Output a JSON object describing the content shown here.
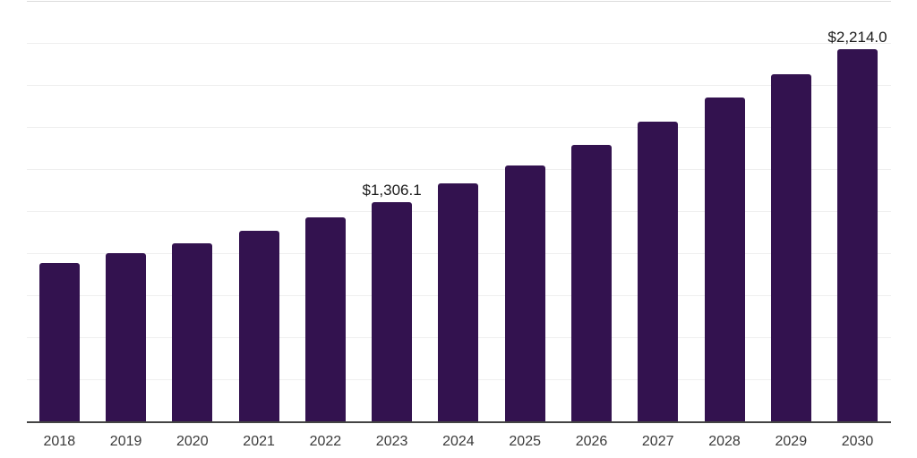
{
  "chart_data": {
    "type": "bar",
    "title": "",
    "xlabel": "",
    "ylabel": "",
    "categories": [
      "2018",
      "2019",
      "2020",
      "2021",
      "2022",
      "2023",
      "2024",
      "2025",
      "2026",
      "2027",
      "2028",
      "2029",
      "2030"
    ],
    "values": [
      941.4,
      1000.0,
      1060.0,
      1131.0,
      1213.0,
      1306.1,
      1415.0,
      1524.0,
      1645.0,
      1783.0,
      1926.0,
      2066.0,
      2214.0
    ],
    "labeled_points": [
      {
        "category": "2023",
        "text": "$1,306.1"
      },
      {
        "category": "2030",
        "text": "$2,214.0"
      }
    ],
    "ylim": [
      0,
      2500
    ],
    "gridline_step": 250,
    "grid": true,
    "legend": "none",
    "y_axis_labels_visible": false,
    "colors": {
      "bar": "#33124f",
      "gridline": "#efefef",
      "gridline_top": "#dcdcdc",
      "axis": "#444444",
      "tick_label": "#3a3a3a",
      "value_label": "#1a1a1a",
      "background": "#ffffff"
    }
  }
}
